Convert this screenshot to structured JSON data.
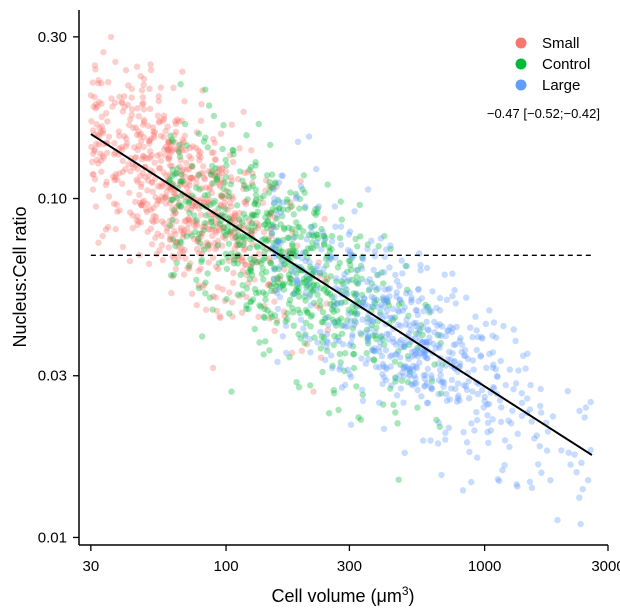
{
  "chart_data": {
    "type": "scatter",
    "xlabel": "Cell volume (μm",
    "xlabel_superscript": "3",
    "xlabel_close": ")",
    "ylabel": "Nucleus:Cell ratio",
    "xscale": "log",
    "yscale": "log",
    "xlim": [
      27,
      3000
    ],
    "ylim": [
      0.0095,
      0.36
    ],
    "xticks": [
      30,
      100,
      300,
      1000,
      3000
    ],
    "xtick_labels": [
      "30",
      "100",
      "300",
      "1000",
      "3000"
    ],
    "yticks": [
      0.01,
      0.03,
      0.1,
      0.3
    ],
    "ytick_labels": [
      "0.01",
      "0.03",
      "0.10",
      "0.30"
    ],
    "grid": false,
    "legend_position": "top-right",
    "series": [
      {
        "name": "Small",
        "color": "#F8766D",
        "x_range": [
          30,
          250
        ],
        "center": [
          70,
          0.1
        ],
        "n": 700
      },
      {
        "name": "Control",
        "color": "#00BA38",
        "x_range": [
          60,
          700
        ],
        "center": [
          170,
          0.065
        ],
        "n": 650
      },
      {
        "name": "Large",
        "color": "#619CFF",
        "x_range": [
          150,
          2600
        ],
        "center": [
          520,
          0.038
        ],
        "n": 600
      }
    ],
    "fit_line": {
      "x": [
        30,
        2600
      ],
      "y": [
        0.155,
        0.0175
      ]
    },
    "reference_line": {
      "y": 0.068,
      "x": [
        30,
        2600
      ],
      "style": "dashed"
    },
    "annotation": "−0.47 [−0.52;−0.42]"
  }
}
